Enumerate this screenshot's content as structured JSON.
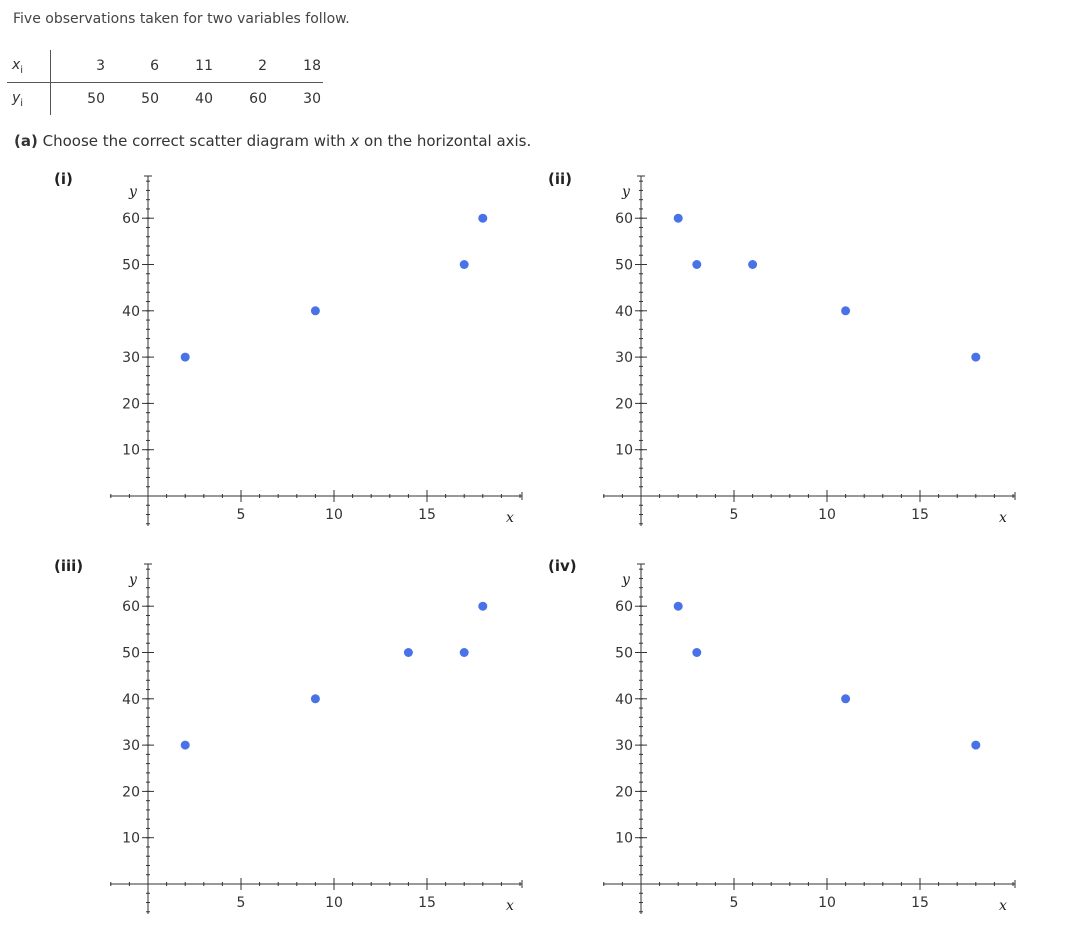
{
  "intro": "Five observations taken for two variables follow.",
  "table": {
    "x_label": "x",
    "x_sub": "i",
    "y_label": "y",
    "y_sub": "i",
    "x_values": [
      "3",
      "6",
      "11",
      "2",
      "18"
    ],
    "y_values": [
      "50",
      "50",
      "40",
      "60",
      "30"
    ]
  },
  "question": {
    "part": "(a)",
    "text_before": " Choose the correct scatter diagram with ",
    "var": "x",
    "text_after": " on the horizontal axis."
  },
  "colors": {
    "point": "#4a72e8",
    "axis": "#333333"
  },
  "chart_data": [
    {
      "type": "scatter",
      "label": "(i)",
      "xlabel": "x",
      "ylabel": "y",
      "xlim": [
        0,
        20
      ],
      "ylim": [
        0,
        70
      ],
      "xticks": [
        5,
        10,
        15
      ],
      "yticks": [
        10,
        20,
        30,
        40,
        50,
        60
      ],
      "points": [
        [
          2,
          30
        ],
        [
          9,
          40
        ],
        [
          17,
          50
        ],
        [
          18,
          60
        ]
      ]
    },
    {
      "type": "scatter",
      "label": "(ii)",
      "xlabel": "x",
      "ylabel": "y",
      "xlim": [
        0,
        20
      ],
      "ylim": [
        0,
        70
      ],
      "xticks": [
        5,
        10,
        15
      ],
      "yticks": [
        10,
        20,
        30,
        40,
        50,
        60
      ],
      "points": [
        [
          2,
          60
        ],
        [
          3,
          50
        ],
        [
          6,
          50
        ],
        [
          11,
          40
        ],
        [
          18,
          30
        ]
      ]
    },
    {
      "type": "scatter",
      "label": "(iii)",
      "xlabel": "x",
      "ylabel": "y",
      "xlim": [
        0,
        20
      ],
      "ylim": [
        0,
        70
      ],
      "xticks": [
        5,
        10,
        15
      ],
      "yticks": [
        10,
        20,
        30,
        40,
        50,
        60
      ],
      "points": [
        [
          2,
          30
        ],
        [
          9,
          40
        ],
        [
          14,
          50
        ],
        [
          17,
          50
        ],
        [
          18,
          60
        ]
      ]
    },
    {
      "type": "scatter",
      "label": "(iv)",
      "xlabel": "x",
      "ylabel": "y",
      "xlim": [
        0,
        20
      ],
      "ylim": [
        0,
        70
      ],
      "xticks": [
        5,
        10,
        15
      ],
      "yticks": [
        10,
        20,
        30,
        40,
        50,
        60
      ],
      "points": [
        [
          2,
          60
        ],
        [
          3,
          50
        ],
        [
          11,
          40
        ],
        [
          18,
          30
        ]
      ]
    }
  ]
}
